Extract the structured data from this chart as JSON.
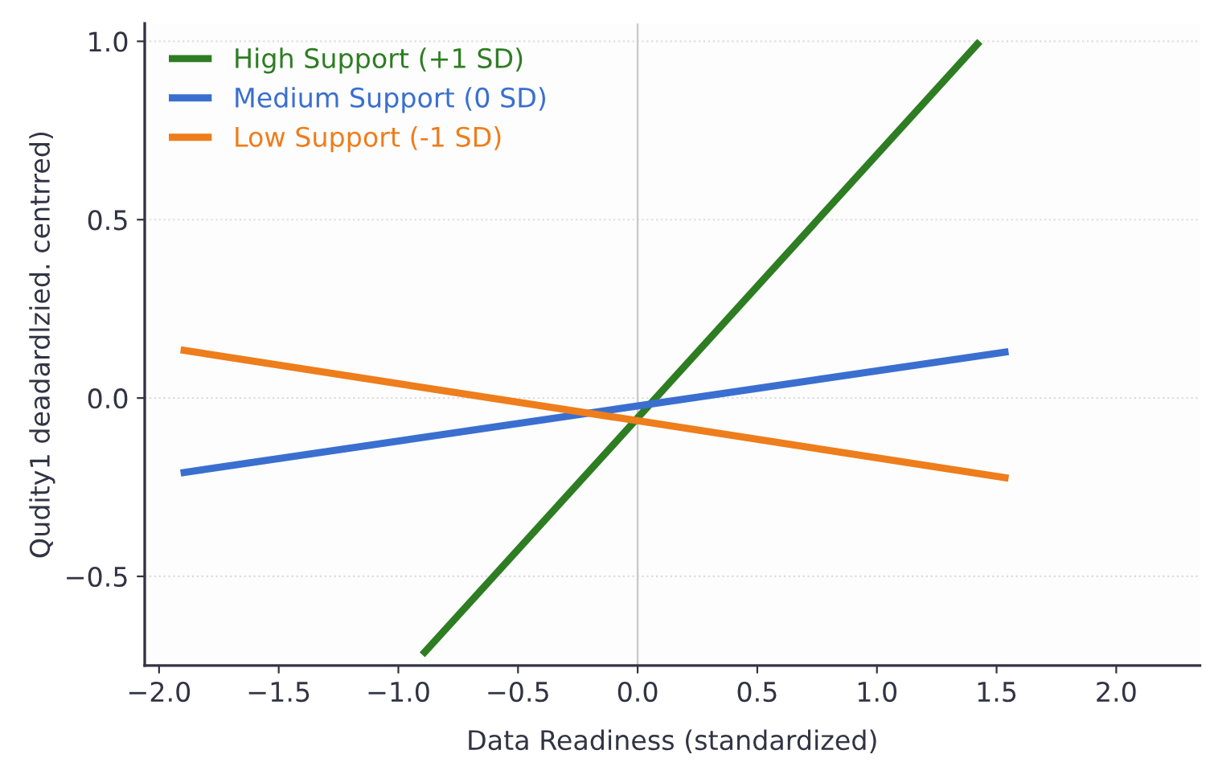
{
  "chart_data": {
    "type": "line",
    "xlabel": "Data Readiness (standardized)",
    "ylabel": "Qudity1 deadardlzied. centrred)",
    "xlim": [
      -2.06,
      2.35
    ],
    "ylim": [
      -0.75,
      1.05
    ],
    "xticks": [
      {
        "value": -2.0,
        "label": "−2.0"
      },
      {
        "value": -1.5,
        "label": "−1.5"
      },
      {
        "value": -1.0,
        "label": "−1.0"
      },
      {
        "value": -0.5,
        "label": "−0.5"
      },
      {
        "value": 0.0,
        "label": "0.0"
      },
      {
        "value": 0.5,
        "label": "0.5"
      },
      {
        "value": 1.0,
        "label": "1.0"
      },
      {
        "value": 1.5,
        "label": "1.5"
      },
      {
        "value": 2.0,
        "label": "2.0"
      }
    ],
    "yticks": [
      {
        "value": -0.5,
        "label": "−0.5"
      },
      {
        "value": 0.0,
        "label": "0.0"
      },
      {
        "value": 0.5,
        "label": "0.5"
      },
      {
        "value": 1.0,
        "label": "1.0"
      }
    ],
    "grid": "y",
    "legend": "top left",
    "marker": "none",
    "line_style": "solid",
    "ref_lines": [
      {
        "axis": "x",
        "value": 0,
        "color": "#cccccc"
      }
    ],
    "series": [
      {
        "name": "High Support (+1 SD)",
        "color": "#2e7d23",
        "x": [
          -0.9,
          1.43
        ],
        "values": [
          -0.72,
          1.0
        ]
      },
      {
        "name": "Medium Support (0 SD)",
        "color": "#3a6fd0",
        "x": [
          -1.91,
          1.55
        ],
        "values": [
          -0.21,
          0.13
        ]
      },
      {
        "name": "Low Support (-1 SD)",
        "color": "#ee7d1c",
        "x": [
          -1.91,
          1.55
        ],
        "values": [
          0.135,
          -0.225
        ]
      }
    ]
  }
}
